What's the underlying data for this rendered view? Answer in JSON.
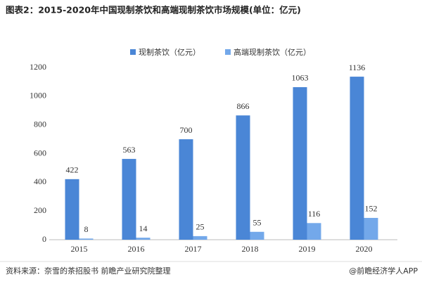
{
  "chart_data": {
    "type": "bar",
    "title": "图表2：2015-2020年中国现制茶饮和高端现制茶饮市场规模(单位：亿元)",
    "categories": [
      "2015",
      "2016",
      "2017",
      "2018",
      "2019",
      "2020"
    ],
    "series": [
      {
        "name": "现制茶饮（亿元）",
        "color": "#4a86d6",
        "values": [
          422,
          563,
          700,
          866,
          1063,
          1136
        ]
      },
      {
        "name": "高端现制茶饮（亿元）",
        "color": "#73a8ea",
        "values": [
          8,
          14,
          25,
          55,
          116,
          152
        ]
      }
    ],
    "ylim": [
      0,
      1200
    ],
    "yticks": [
      0,
      200,
      400,
      600,
      800,
      1000,
      1200
    ],
    "grid": false,
    "legend": "top",
    "source": "资料来源：奈雪的茶招股书 前瞻产业研究院整理",
    "credit": "@前瞻经济学人APP"
  }
}
